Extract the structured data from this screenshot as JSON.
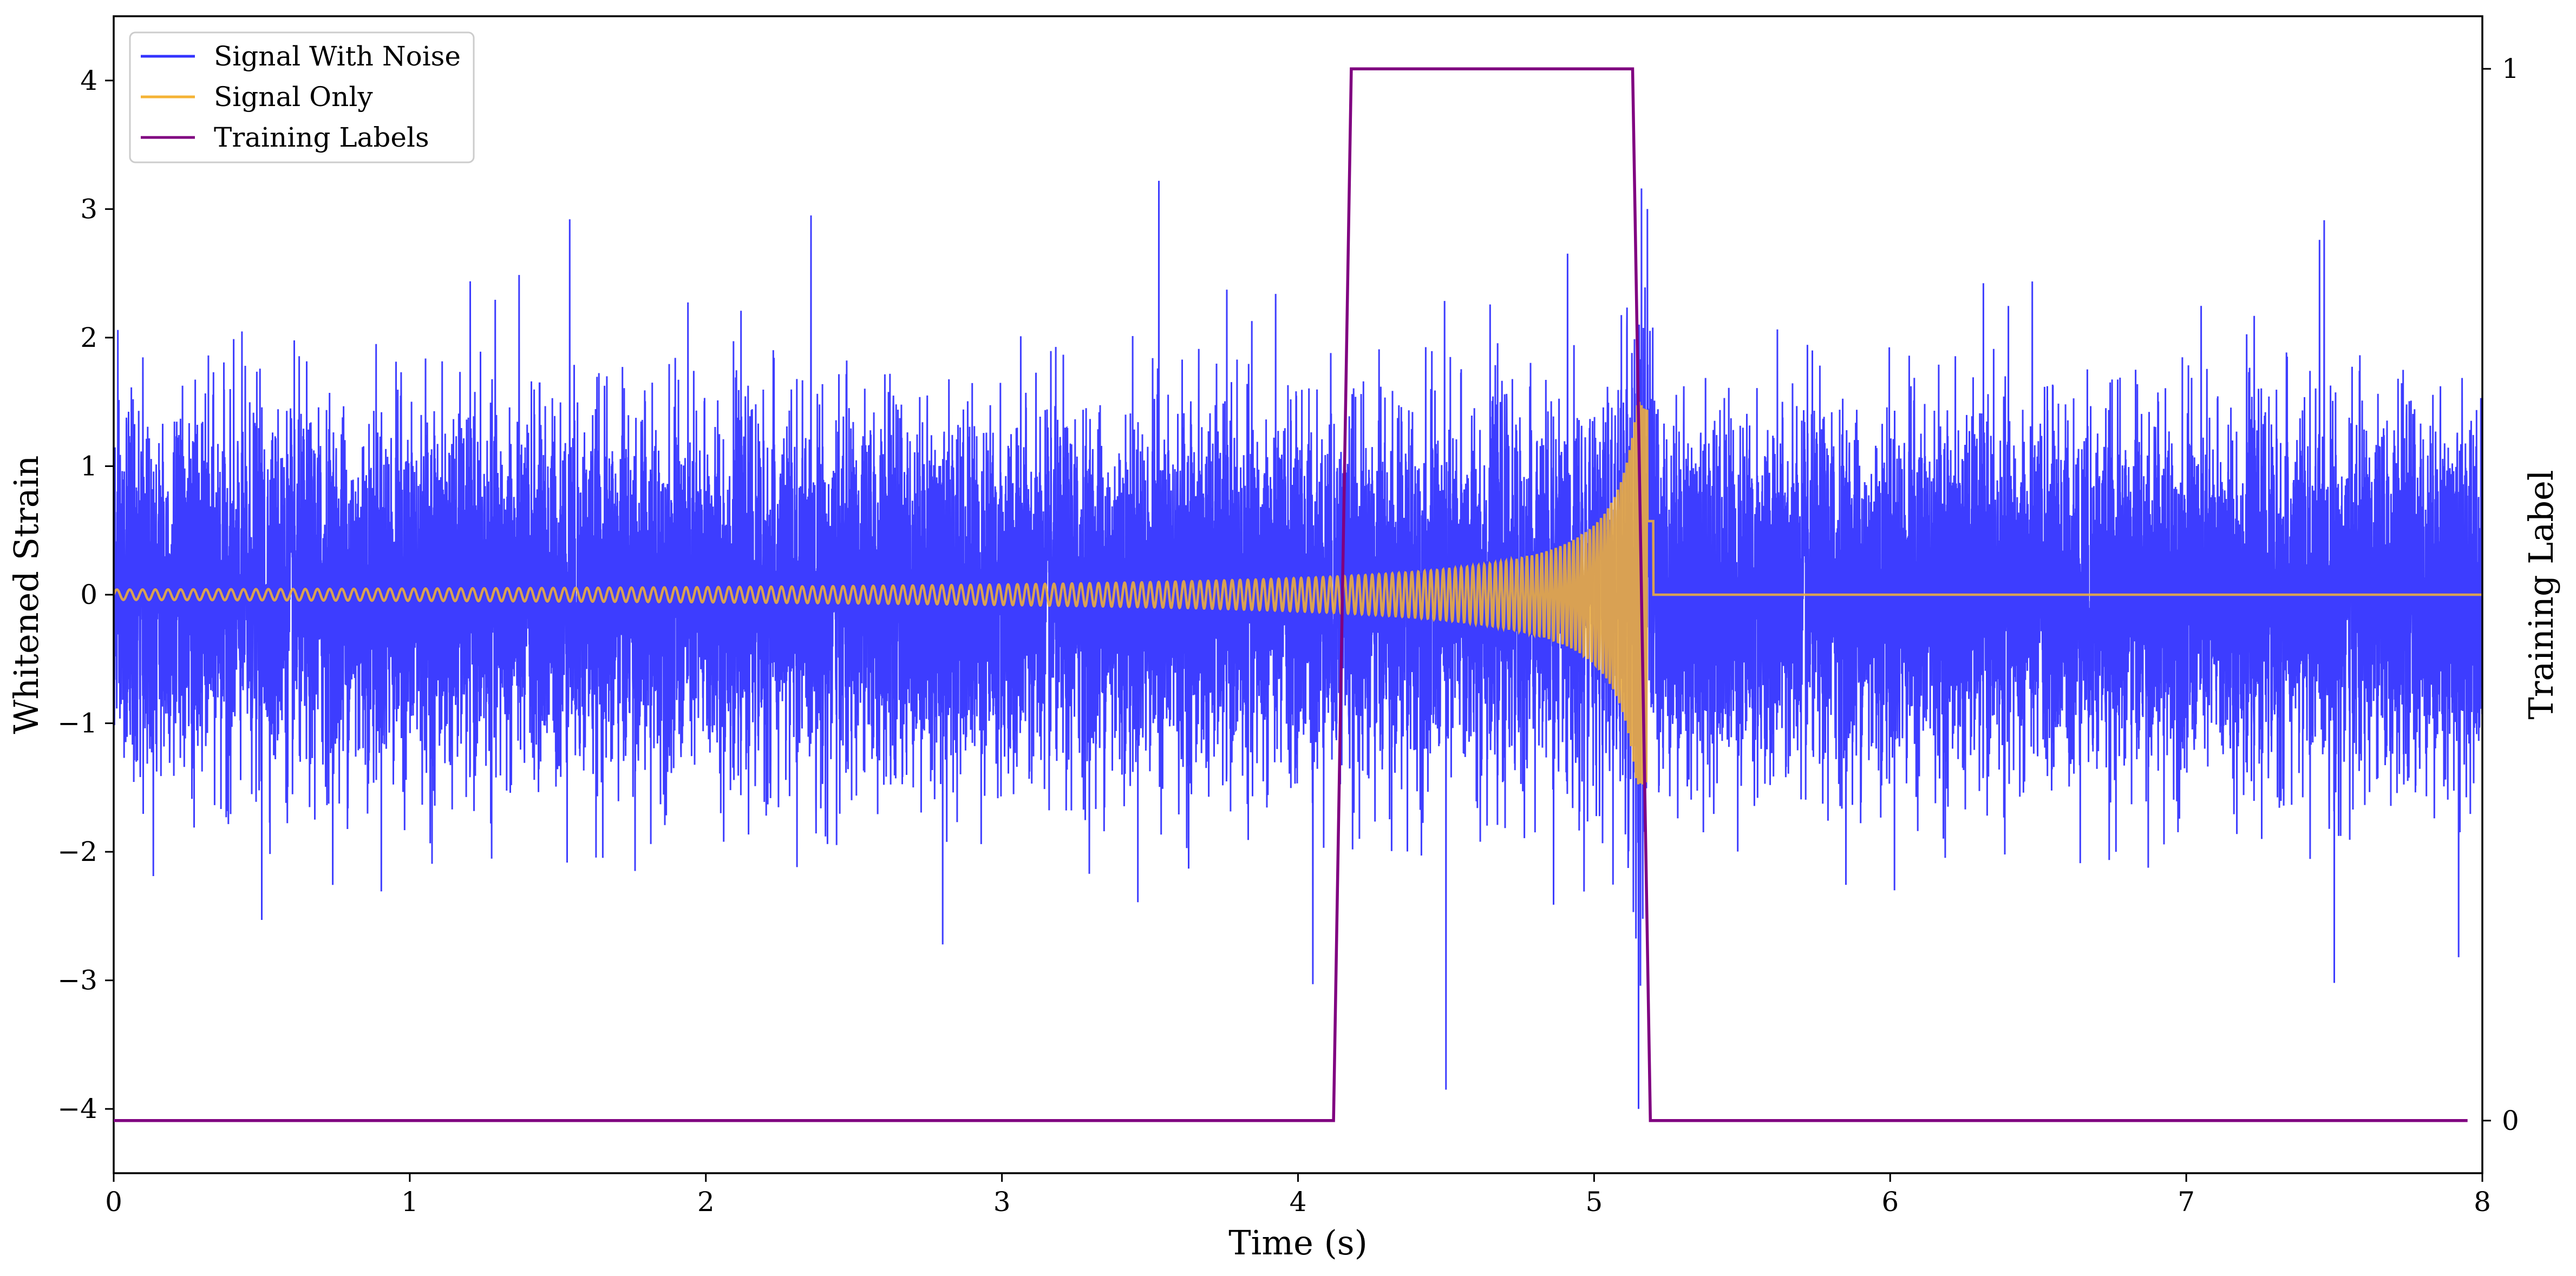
{
  "chart_data": {
    "type": "line",
    "title": "",
    "xlabel": "Time (s)",
    "ylabel": "Whitened Strain",
    "y2label": "Training Label",
    "xlim": [
      0,
      8
    ],
    "ylim": [
      -4.5,
      4.5
    ],
    "y2lim": [
      -0.05,
      1.05
    ],
    "xticks": [
      "0",
      "1",
      "2",
      "3",
      "4",
      "5",
      "6",
      "7",
      "8"
    ],
    "yticks": [
      "−4",
      "−3",
      "−2",
      "−1",
      "0",
      "1",
      "2",
      "3",
      "4"
    ],
    "y2ticks": [
      "0",
      "1"
    ],
    "grid": false,
    "legend_position": "top-left",
    "colors": {
      "noise": "#3333ff",
      "signal": "#f5b335",
      "labels": "#800080"
    },
    "series": [
      {
        "name": "Signal With Noise",
        "axis": "left",
        "description_range": [
          -4.3,
          3.3
        ],
        "noise_std": 0.68,
        "spikes": [
          {
            "x": 1.54,
            "y": 2.92
          },
          {
            "x": 3.53,
            "y": 3.22
          },
          {
            "x": 5.18,
            "y": 3.0
          },
          {
            "x": 7.45,
            "y": 2.76
          },
          {
            "x": 0.5,
            "y": -2.53
          },
          {
            "x": 2.8,
            "y": -2.72
          },
          {
            "x": 4.05,
            "y": -3.03
          },
          {
            "x": 4.5,
            "y": -3.85
          },
          {
            "x": 5.15,
            "y": -4.0
          },
          {
            "x": 7.5,
            "y": -3.02
          },
          {
            "x": 7.92,
            "y": -2.82
          }
        ]
      },
      {
        "name": "Signal Only",
        "axis": "left",
        "chirp_start": 0,
        "chirp_end": 5.2,
        "amplitude_start": 0.04,
        "amplitude_peak": 1.5,
        "freq_start": 23,
        "freq_end": 200,
        "post_value": 0
      },
      {
        "name": "Training Labels",
        "axis": "right",
        "x": [
          0,
          4.12,
          4.18,
          5.13,
          5.19,
          7.95
        ],
        "y": [
          0,
          0,
          1,
          1,
          0,
          0
        ]
      }
    ]
  }
}
